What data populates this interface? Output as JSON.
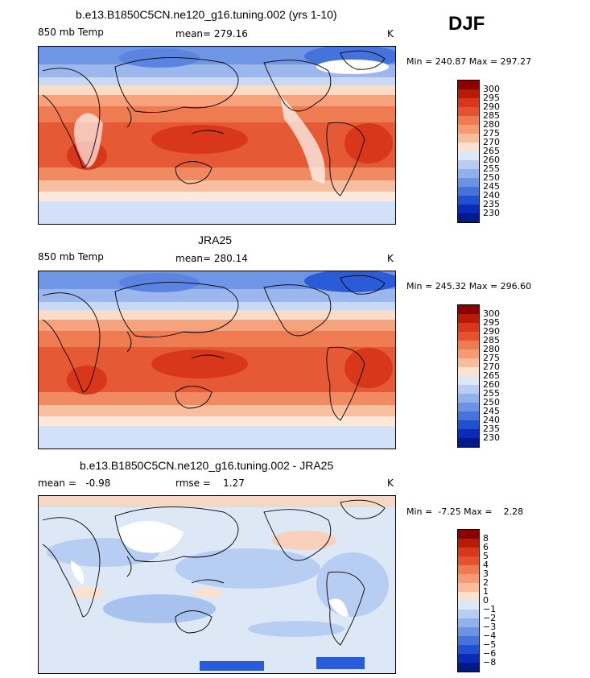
{
  "season": "DJF",
  "panels": [
    {
      "title": "b.e13.B1850C5CN.ne120_g16.tuning.002 (yrs 1-10)",
      "variable": "850 mb Temp",
      "stat": "mean= 279.16",
      "units": "K",
      "minmax": "Min = 240.87 Max = 297.27",
      "colorbar": {
        "labels": [
          "300",
          "295",
          "290",
          "285",
          "280",
          "275",
          "270",
          "265",
          "260",
          "255",
          "250",
          "245",
          "240",
          "235",
          "230"
        ],
        "colors": [
          "#8b0000",
          "#b81a08",
          "#d8371b",
          "#e5532e",
          "#ef7b52",
          "#f59a73",
          "#f8bd9d",
          "#fbe1cf",
          "#dde8f7",
          "#b7cdf2",
          "#92b0ec",
          "#6c92e4",
          "#4672dc",
          "#1f50d0",
          "#0a2ab8",
          "#001a8c"
        ]
      }
    },
    {
      "title": "JRA25",
      "variable": "850 mb Temp",
      "stat": "mean= 280.14",
      "units": "K",
      "minmax": "Min = 245.32 Max = 296.60",
      "colorbar": {
        "labels": [
          "300",
          "295",
          "290",
          "285",
          "280",
          "275",
          "270",
          "265",
          "260",
          "255",
          "250",
          "245",
          "240",
          "235",
          "230"
        ],
        "colors": [
          "#8b0000",
          "#b81a08",
          "#d8371b",
          "#e5532e",
          "#ef7b52",
          "#f59a73",
          "#f8bd9d",
          "#fbe1cf",
          "#dde8f7",
          "#b7cdf2",
          "#92b0ec",
          "#6c92e4",
          "#4672dc",
          "#1f50d0",
          "#0a2ab8",
          "#001a8c"
        ]
      }
    },
    {
      "title": "b.e13.B1850C5CN.ne120_g16.tuning.002 - JRA25",
      "stat_left": "mean =   -0.98",
      "stat_right": "rmse =    1.27",
      "units": "K",
      "minmax": "Min =  -7.25 Max =    2.28",
      "colorbar": {
        "labels": [
          "8",
          "6",
          "5",
          "4",
          "3",
          "2",
          "1",
          "0",
          "−1",
          "−2",
          "−3",
          "−4",
          "−5",
          "−6",
          "−8"
        ],
        "colors": [
          "#8b0000",
          "#b81a08",
          "#d8371b",
          "#e5532e",
          "#ef7b52",
          "#f59a73",
          "#f8bd9d",
          "#fbe1cf",
          "#dde8f7",
          "#b7cdf2",
          "#92b0ec",
          "#6c92e4",
          "#4672dc",
          "#1f50d0",
          "#0a2ab8",
          "#001a8c"
        ]
      }
    }
  ]
}
